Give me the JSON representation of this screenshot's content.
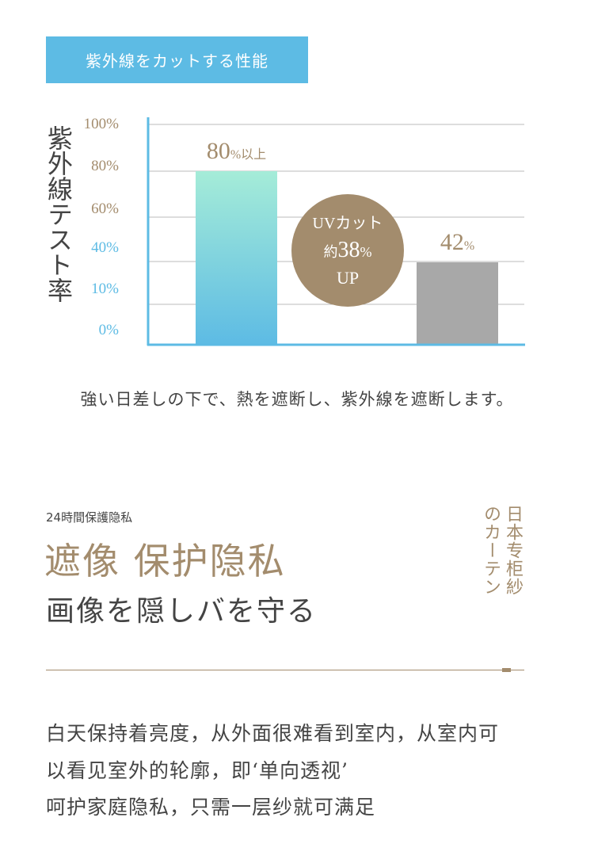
{
  "header": {
    "title": "紫外線をカットする性能"
  },
  "chart_data": {
    "type": "bar",
    "ylabel": "紫外線テスト率",
    "yticks": [
      {
        "label": "100%",
        "color": "#a38c6d"
      },
      {
        "label": "80%",
        "color": "#a38c6d"
      },
      {
        "label": "60%",
        "color": "#a38c6d"
      },
      {
        "label": "40%",
        "color": "#5dbbe4"
      },
      {
        "label": "10%",
        "color": "#5dbbe4"
      },
      {
        "label": "0%",
        "color": "#5dbbe4"
      }
    ],
    "ylim": [
      0,
      100
    ],
    "grid": true,
    "bars": [
      {
        "value": 80,
        "label_value": "80",
        "label_unit": "%以上",
        "colors": [
          "#a5ecd8",
          "#5dbbe4"
        ]
      },
      {
        "value": 42,
        "label_value": "42",
        "label_unit": "%",
        "colors": [
          "#a8a8a8",
          "#a8a8a8"
        ]
      }
    ],
    "annotation": {
      "line1": "UVカット",
      "prefix": "約",
      "value": "38",
      "unit": "%",
      "line3": "UP"
    },
    "axis_color": "#5dbbe4"
  },
  "caption": "強い日差しの下で、熱を遮断し、紫外線を遮断します。",
  "section": {
    "small_title": "24時間保護隐私",
    "big_title": "遮像 保护隐私",
    "sub_title": "画像を隠しバを守る",
    "side_col1": "日本专柜紗",
    "side_col2": "のカーテン"
  },
  "body_lines": [
    "白天保持着亮度，从外面很难看到室内，从室内可",
    "以看见室外的轮廓，即‘单向透视’",
    "呵护家庭隐私，只需一层纱就可满足"
  ],
  "colors": {
    "accent": "#a38c6d",
    "blue": "#5dbbe4",
    "grid": "#bbbbbb"
  }
}
